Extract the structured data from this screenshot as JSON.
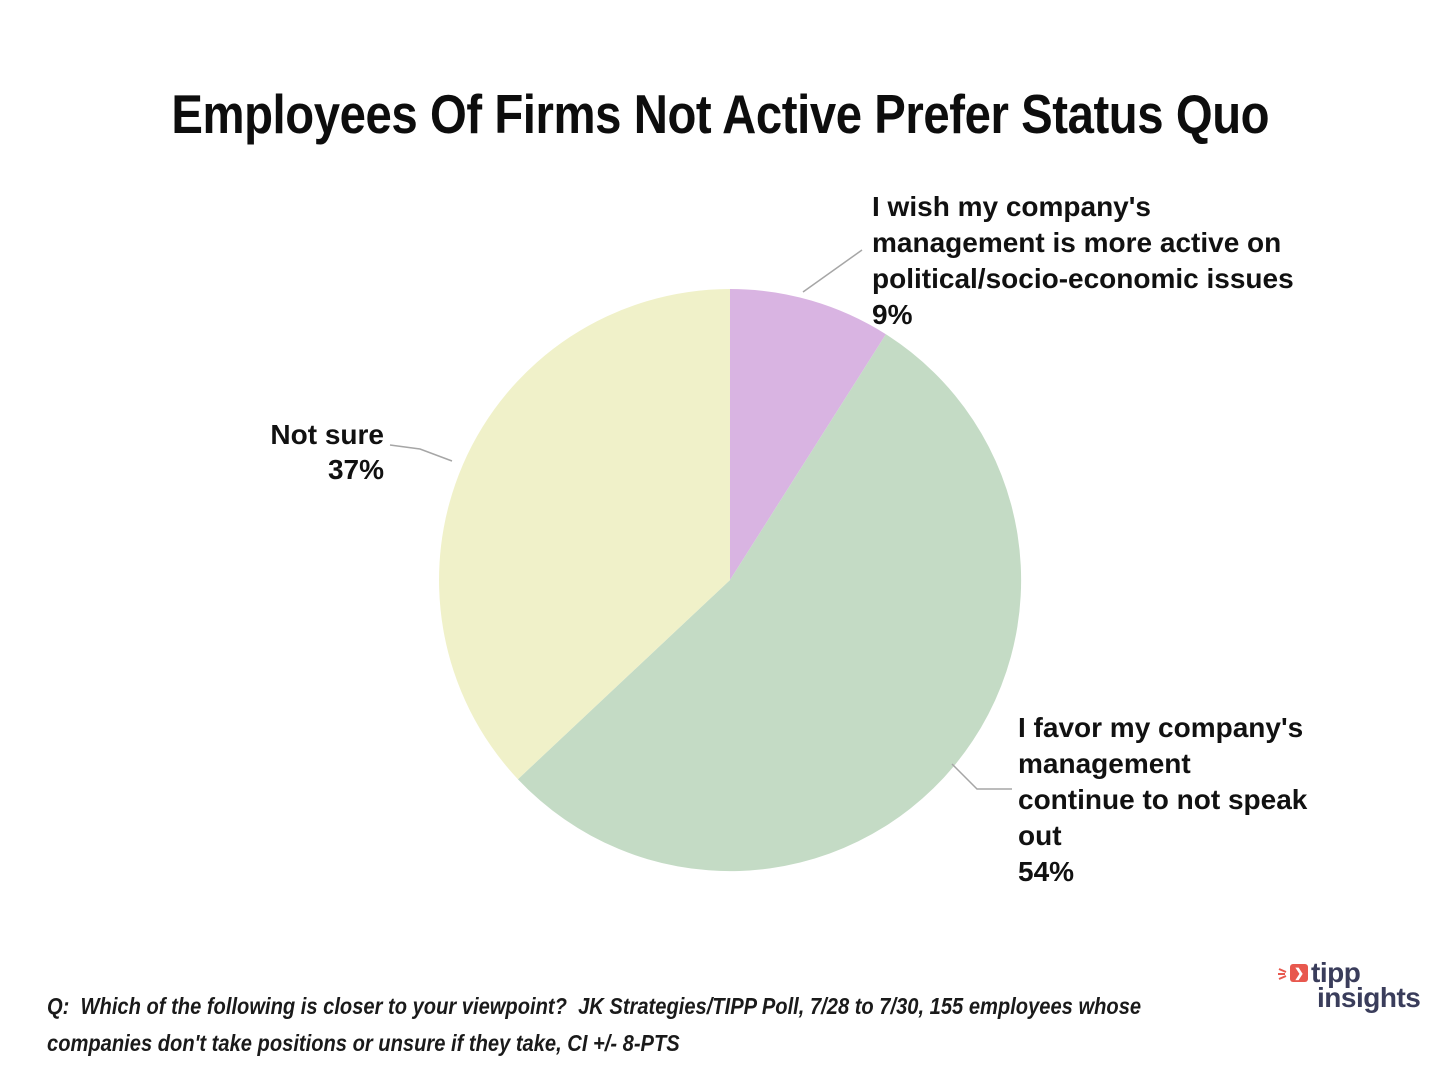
{
  "title": "Employees Of Firms Not Active Prefer Status Quo",
  "chart_data": {
    "type": "pie",
    "title": "Employees Of Firms Not Active Prefer Status Quo",
    "start_angle_deg": 0,
    "direction": "clockwise",
    "value_format": "percent",
    "legend": "none",
    "slices": [
      {
        "id": "wish",
        "label": "I wish my company's management is more active on political/socio-economic issues",
        "value": 9,
        "color": "#d9b4e2"
      },
      {
        "id": "favor",
        "label": "I favor my company's management continue to not speak out",
        "value": 54,
        "color": "#c4dbc5"
      },
      {
        "id": "not-sure",
        "label": "Not sure",
        "value": 37,
        "color": "#f0f1c9"
      }
    ]
  },
  "annotations": {
    "wish": {
      "lines": [
        "I wish my company's",
        "management is more active on",
        "political/socio-economic issues",
        "9%"
      ]
    },
    "favor": {
      "lines": [
        "I favor my company's",
        "management",
        "continue to not speak",
        "out",
        "54%"
      ]
    },
    "notsure": {
      "lines": [
        "Not sure",
        "37%"
      ]
    }
  },
  "footnote": {
    "lines": [
      "Q:  Which of the following is closer to your viewpoint?  JK Strategies/TIPP Poll, 7/28 to 7/30, 155 employees whose",
      "companies don't take positions or unsure if they take, CI +/- 8-PTS"
    ]
  },
  "logo": {
    "line1": "tipp",
    "line2": "insights",
    "arrow_glyph": "❯",
    "colors": {
      "navy": "#3a3d5b",
      "red": "#e8584e"
    }
  },
  "leader_line_color": "#a6a6a6"
}
